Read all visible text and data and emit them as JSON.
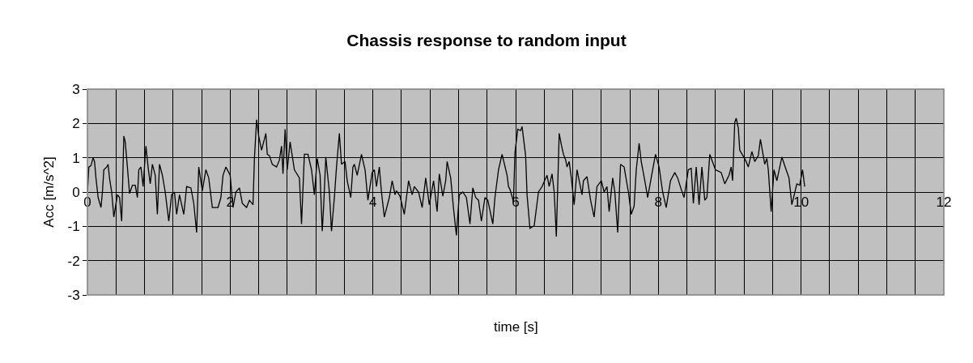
{
  "chart_data": {
    "type": "line",
    "title": "Chassis response to random input",
    "xlabel": "time [s]",
    "ylabel": "Acc [m/s^2]",
    "x": [
      0,
      0.02,
      0.05,
      0.08,
      0.1,
      0.12,
      0.15,
      0.19,
      0.21,
      0.23,
      0.27,
      0.29,
      0.31,
      0.34,
      0.37,
      0.42,
      0.45,
      0.48,
      0.51,
      0.53,
      0.56,
      0.59,
      0.63,
      0.67,
      0.7,
      0.72,
      0.75,
      0.78,
      0.82,
      0.85,
      0.88,
      0.91,
      0.95,
      0.98,
      1.01,
      1.05,
      1.09,
      1.14,
      1.18,
      1.22,
      1.25,
      1.29,
      1.35,
      1.39,
      1.45,
      1.49,
      1.53,
      1.56,
      1.61,
      1.66,
      1.7,
      1.75,
      1.83,
      1.87,
      1.9,
      1.94,
      2.0,
      2.04,
      2.08,
      2.13,
      2.17,
      2.23,
      2.27,
      2.32,
      2.34,
      2.37,
      2.4,
      2.44,
      2.5,
      2.52,
      2.55,
      2.59,
      2.65,
      2.69,
      2.72,
      2.74,
      2.77,
      2.8,
      2.84,
      2.9,
      2.97,
      3.0,
      3.04,
      3.09,
      3.14,
      3.18,
      3.22,
      3.26,
      3.29,
      3.31,
      3.34,
      3.39,
      3.42,
      3.46,
      3.49,
      3.53,
      3.56,
      3.61,
      3.64,
      3.69,
      3.72,
      3.74,
      3.78,
      3.84,
      3.89,
      3.93,
      3.99,
      4.02,
      4.05,
      4.09,
      4.12,
      4.16,
      4.23,
      4.27,
      4.31,
      4.33,
      4.38,
      4.44,
      4.5,
      4.55,
      4.58,
      4.64,
      4.69,
      4.74,
      4.79,
      4.85,
      4.9,
      4.93,
      4.98,
      5.02,
      5.04,
      5.09,
      5.13,
      5.17,
      5.21,
      5.26,
      5.31,
      5.36,
      5.4,
      5.44,
      5.48,
      5.52,
      5.57,
      5.61,
      5.68,
      5.71,
      5.76,
      5.81,
      5.88,
      5.9,
      5.92,
      5.97,
      5.99,
      6.03,
      6.07,
      6.09,
      6.14,
      6.16,
      6.2,
      6.26,
      6.32,
      6.37,
      6.44,
      6.47,
      6.51,
      6.54,
      6.57,
      6.61,
      6.64,
      6.67,
      6.7,
      6.72,
      6.75,
      6.78,
      6.82,
      6.86,
      6.93,
      6.95,
      7.0,
      7.05,
      7.1,
      7.14,
      7.2,
      7.24,
      7.28,
      7.31,
      7.36,
      7.39,
      7.43,
      7.47,
      7.52,
      7.58,
      7.62,
      7.66,
      7.69,
      7.73,
      7.76,
      7.81,
      7.85,
      7.92,
      7.96,
      8.01,
      8.06,
      8.11,
      8.17,
      8.23,
      8.27,
      8.32,
      8.36,
      8.42,
      8.46,
      8.49,
      8.53,
      8.57,
      8.61,
      8.65,
      8.68,
      8.72,
      8.8,
      8.88,
      8.93,
      8.99,
      9.02,
      9.04,
      9.07,
      9.09,
      9.12,
      9.14,
      9.22,
      9.26,
      9.31,
      9.35,
      9.4,
      9.43,
      9.49,
      9.52,
      9.54,
      9.58,
      9.62,
      9.66,
      9.73,
      9.79,
      9.83,
      9.87,
      9.94,
      9.98,
      10.02,
      10.05
    ],
    "values": [
      0,
      0.73,
      0.77,
      1.0,
      0.88,
      0.4,
      -0.16,
      -0.45,
      0,
      0.65,
      0.73,
      0.81,
      0.4,
      0,
      -0.73,
      -0.08,
      -0.16,
      -0.85,
      1.63,
      1.46,
      0.73,
      -0.04,
      0.2,
      0.2,
      -0.16,
      0.65,
      0.73,
      0.16,
      1.34,
      0.73,
      0.24,
      0.81,
      0.49,
      -0.65,
      0.81,
      0.49,
      0,
      -0.85,
      -0.08,
      0,
      -0.65,
      -0.08,
      -0.65,
      0.16,
      0.12,
      -0.33,
      -1.18,
      0.73,
      0.04,
      0.65,
      0.41,
      -0.45,
      -0.45,
      -0.16,
      0.49,
      0.73,
      0.49,
      -0.45,
      0,
      0.12,
      -0.33,
      -0.45,
      -0.24,
      -0.37,
      0.98,
      2.11,
      1.63,
      1.22,
      1.71,
      1.1,
      1.06,
      0.81,
      0.73,
      0.93,
      1.34,
      0.53,
      1.83,
      0.65,
      1.46,
      0.65,
      0.41,
      -0.93,
      1.1,
      1.1,
      0.65,
      -0.08,
      0.98,
      0.49,
      -1.14,
      -0.41,
      1.02,
      0,
      -1.14,
      -0.16,
      0.73,
      1.71,
      0.81,
      0.89,
      0.33,
      -0.16,
      0.73,
      0.81,
      0.49,
      1.1,
      0.65,
      -0.24,
      0.57,
      0.65,
      0.16,
      0.73,
      0,
      -0.73,
      -0.16,
      0.33,
      -0.08,
      0.04,
      -0.12,
      -0.65,
      0.33,
      -0.08,
      0.16,
      0,
      -0.45,
      0.41,
      -0.37,
      0.33,
      -0.57,
      0.53,
      -0.12,
      0.33,
      0.89,
      0.41,
      -0.49,
      -1.26,
      -0.08,
      0,
      -0.16,
      -0.93,
      0.12,
      -0.16,
      -0.24,
      -0.85,
      -0.16,
      -0.24,
      -0.93,
      -0.16,
      0.65,
      1.1,
      0.49,
      0.16,
      0.08,
      -0.28,
      1.14,
      1.83,
      1.79,
      1.91,
      1.06,
      -0.08,
      -1.06,
      -0.98,
      0,
      0.16,
      0.49,
      0.16,
      0.53,
      0,
      -1.3,
      1.71,
      1.38,
      1.1,
      0.94,
      0.73,
      0.89,
      0.41,
      -0.37,
      0.65,
      -0.08,
      0.33,
      0.45,
      -0.24,
      -0.73,
      0.16,
      0.33,
      0,
      0.16,
      -0.57,
      0.41,
      0,
      -1.18,
      0.81,
      0.73,
      0,
      -0.65,
      -0.41,
      0.65,
      1.42,
      0.89,
      0.33,
      -0.16,
      0.65,
      1.1,
      0.73,
      0,
      -0.45,
      0.33,
      0.57,
      0.41,
      0.08,
      -0.16,
      0.65,
      0.69,
      -0.33,
      0.73,
      -0.37,
      0.73,
      -0.24,
      -0.16,
      1.1,
      0.65,
      0.57,
      0.24,
      0.49,
      0.73,
      0.33,
      2.03,
      2.15,
      1.87,
      1.22,
      0.93,
      0.73,
      1.18,
      0.89,
      1.06,
      1.54,
      0.81,
      0.98,
      0.65,
      -0.57,
      0.65,
      0.33,
      1.02,
      0.65,
      0.41,
      -0.37,
      0.24,
      0.2,
      0.65,
      0.16
    ],
    "color": "#000000",
    "marker": "none",
    "line_style": "solid",
    "xlim": [
      0,
      12
    ],
    "ylim": [
      -3,
      3
    ],
    "xticks": [
      0,
      {
        "value": 0.4,
        "label": null
      },
      {
        "value": 0.8,
        "label": null
      },
      {
        "value": 1.2,
        "label": null
      },
      {
        "value": 1.6,
        "label": null
      },
      2,
      {
        "value": 2.4,
        "label": null
      },
      {
        "value": 2.8,
        "label": null
      },
      {
        "value": 3.2,
        "label": null
      },
      {
        "value": 3.6,
        "label": null
      },
      4,
      {
        "value": 4.4,
        "label": null
      },
      {
        "value": 4.8,
        "label": null
      },
      {
        "value": 5.2,
        "label": null
      },
      {
        "value": 5.6,
        "label": null
      },
      6,
      {
        "value": 6.4,
        "label": null
      },
      {
        "value": 6.8,
        "label": null
      },
      {
        "value": 7.2,
        "label": null
      },
      {
        "value": 7.6,
        "label": null
      },
      8,
      {
        "value": 8.4,
        "label": null
      },
      {
        "value": 8.8,
        "label": null
      },
      {
        "value": 9.2,
        "label": null
      },
      {
        "value": 9.6,
        "label": null
      },
      10,
      {
        "value": 10.4,
        "label": null
      },
      {
        "value": 10.8,
        "label": null
      },
      {
        "value": 11.2,
        "label": null
      },
      {
        "value": 11.6,
        "label": null
      },
      12
    ],
    "yticks": [
      -3,
      -2,
      -1,
      0,
      1,
      2,
      3
    ],
    "grid": true,
    "legend": false
  }
}
